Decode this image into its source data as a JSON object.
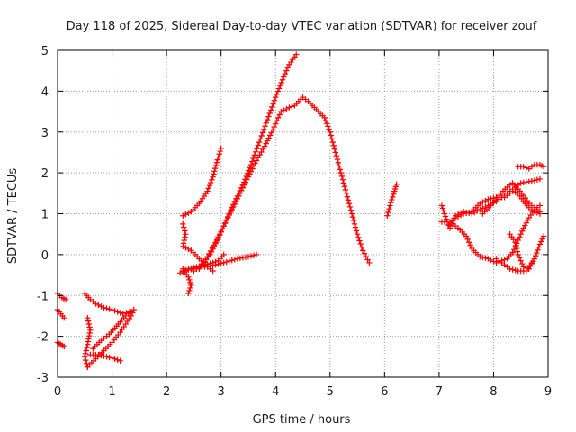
{
  "chart_data": {
    "type": "scatter",
    "title": "Day 118 of 2025, Sidereal Day-to-day VTEC variation (SDTVAR) for receiver zouf",
    "xlabel": "GPS time / hours",
    "ylabel": "SDTVAR / TECUs",
    "xlim": [
      0,
      9
    ],
    "ylim": [
      -3,
      5
    ],
    "xticks": [
      0,
      1,
      2,
      3,
      4,
      5,
      6,
      7,
      8,
      9
    ],
    "yticks": [
      -3,
      -2,
      -1,
      0,
      1,
      2,
      3,
      4,
      5
    ],
    "grid": true,
    "marker": "+",
    "marker_color": "#ff0000",
    "tracks": [
      {
        "points": [
          [
            0.0,
            -0.95
          ],
          [
            0.08,
            -1.05
          ],
          [
            0.15,
            -1.1
          ]
        ]
      },
      {
        "points": [
          [
            0.0,
            -1.35
          ],
          [
            0.06,
            -1.45
          ],
          [
            0.12,
            -1.55
          ]
        ]
      },
      {
        "points": [
          [
            0.0,
            -2.15
          ],
          [
            0.06,
            -2.2
          ],
          [
            0.12,
            -2.25
          ]
        ]
      },
      {
        "points": [
          [
            0.5,
            -0.95
          ],
          [
            0.6,
            -1.1
          ],
          [
            0.7,
            -1.2
          ],
          [
            0.85,
            -1.3
          ],
          [
            1.0,
            -1.35
          ],
          [
            1.1,
            -1.4
          ],
          [
            1.2,
            -1.45
          ],
          [
            1.32,
            -1.4
          ]
        ]
      },
      {
        "points": [
          [
            0.55,
            -1.55
          ],
          [
            0.6,
            -1.85
          ],
          [
            0.55,
            -2.2
          ],
          [
            0.5,
            -2.5
          ],
          [
            0.55,
            -2.75
          ]
        ]
      },
      {
        "points": [
          [
            0.55,
            -2.75
          ],
          [
            0.7,
            -2.55
          ],
          [
            0.85,
            -2.35
          ],
          [
            1.0,
            -2.15
          ],
          [
            1.15,
            -1.9
          ],
          [
            1.25,
            -1.7
          ],
          [
            1.35,
            -1.5
          ],
          [
            1.4,
            -1.35
          ]
        ]
      },
      {
        "points": [
          [
            0.6,
            -2.45
          ],
          [
            0.75,
            -2.45
          ],
          [
            0.9,
            -2.5
          ],
          [
            1.05,
            -2.55
          ],
          [
            1.15,
            -2.6
          ]
        ]
      },
      {
        "points": [
          [
            0.65,
            -2.3
          ],
          [
            0.8,
            -2.1
          ],
          [
            0.95,
            -1.95
          ],
          [
            1.05,
            -1.8
          ],
          [
            1.15,
            -1.65
          ],
          [
            1.25,
            -1.5
          ],
          [
            1.35,
            -1.4
          ]
        ]
      },
      {
        "points": [
          [
            2.3,
            0.95
          ],
          [
            2.45,
            1.05
          ],
          [
            2.6,
            1.25
          ],
          [
            2.75,
            1.55
          ],
          [
            2.85,
            1.9
          ],
          [
            2.92,
            2.25
          ],
          [
            3.0,
            2.6
          ]
        ]
      },
      {
        "points": [
          [
            2.3,
            0.75
          ],
          [
            2.35,
            0.5
          ],
          [
            2.3,
            0.2
          ],
          [
            2.45,
            0.1
          ],
          [
            2.6,
            -0.1
          ],
          [
            2.75,
            -0.3
          ],
          [
            2.85,
            -0.4
          ]
        ]
      },
      {
        "points": [
          [
            2.3,
            -0.35
          ],
          [
            2.4,
            -0.55
          ],
          [
            2.45,
            -0.75
          ],
          [
            2.4,
            -0.95
          ]
        ]
      },
      {
        "points": [
          [
            2.3,
            -0.4
          ],
          [
            2.5,
            -0.35
          ],
          [
            2.7,
            -0.3
          ],
          [
            2.9,
            -0.25
          ],
          [
            3.1,
            -0.18
          ],
          [
            3.3,
            -0.1
          ],
          [
            3.5,
            -0.05
          ],
          [
            3.65,
            0.0
          ]
        ]
      },
      {
        "points": [
          [
            2.25,
            -0.45
          ],
          [
            2.4,
            -0.35
          ],
          [
            2.55,
            -0.3
          ],
          [
            2.7,
            -0.25
          ],
          [
            2.85,
            -0.2
          ],
          [
            2.95,
            -0.15
          ],
          [
            3.05,
            0.0
          ]
        ]
      },
      {
        "points": [
          [
            2.5,
            -0.4
          ],
          [
            2.65,
            -0.25
          ],
          [
            2.8,
            0.0
          ],
          [
            2.95,
            0.4
          ],
          [
            3.1,
            0.85
          ],
          [
            3.25,
            1.3
          ],
          [
            3.4,
            1.7
          ],
          [
            3.55,
            2.2
          ],
          [
            3.7,
            2.75
          ],
          [
            3.85,
            3.3
          ],
          [
            4.0,
            3.85
          ],
          [
            4.15,
            4.35
          ],
          [
            4.25,
            4.65
          ],
          [
            4.38,
            4.9
          ]
        ]
      },
      {
        "points": [
          [
            2.6,
            -0.35
          ],
          [
            2.75,
            -0.05
          ],
          [
            2.9,
            0.3
          ],
          [
            3.05,
            0.7
          ],
          [
            3.2,
            1.1
          ],
          [
            3.35,
            1.5
          ],
          [
            3.5,
            1.9
          ],
          [
            3.65,
            2.3
          ],
          [
            3.8,
            2.65
          ],
          [
            3.95,
            3.05
          ],
          [
            4.1,
            3.5
          ],
          [
            4.25,
            3.6
          ],
          [
            4.35,
            3.65
          ],
          [
            4.5,
            3.85
          ],
          [
            4.6,
            3.75
          ],
          [
            4.75,
            3.55
          ],
          [
            4.9,
            3.35
          ],
          [
            5.0,
            3.0
          ],
          [
            5.1,
            2.5
          ],
          [
            5.2,
            2.0
          ],
          [
            5.3,
            1.5
          ],
          [
            5.4,
            1.0
          ],
          [
            5.5,
            0.5
          ],
          [
            5.6,
            0.1
          ],
          [
            5.72,
            -0.2
          ]
        ]
      },
      {
        "points": [
          [
            6.05,
            0.95
          ],
          [
            6.1,
            1.2
          ],
          [
            6.18,
            1.55
          ],
          [
            6.22,
            1.72
          ]
        ]
      },
      {
        "points": [
          [
            7.05,
            1.2
          ],
          [
            7.1,
            1.0
          ],
          [
            7.15,
            0.8
          ],
          [
            7.2,
            0.65
          ]
        ]
      },
      {
        "points": [
          [
            7.05,
            0.8
          ],
          [
            7.2,
            0.8
          ],
          [
            7.35,
            0.65
          ],
          [
            7.5,
            0.45
          ],
          [
            7.6,
            0.15
          ],
          [
            7.75,
            -0.05
          ],
          [
            7.9,
            -0.1
          ],
          [
            8.05,
            -0.2
          ],
          [
            8.15,
            -0.15
          ],
          [
            8.25,
            -0.1
          ],
          [
            8.35,
            0.05
          ],
          [
            8.45,
            0.35
          ],
          [
            8.55,
            0.65
          ],
          [
            8.65,
            0.9
          ],
          [
            8.75,
            1.1
          ],
          [
            8.85,
            1.2
          ]
        ]
      },
      {
        "points": [
          [
            7.2,
            0.7
          ],
          [
            7.3,
            0.95
          ],
          [
            7.45,
            1.05
          ],
          [
            7.6,
            1.0
          ],
          [
            7.75,
            1.1
          ],
          [
            7.9,
            1.2
          ],
          [
            8.05,
            1.3
          ],
          [
            8.2,
            1.45
          ],
          [
            8.35,
            1.6
          ],
          [
            8.5,
            1.75
          ],
          [
            8.7,
            1.8
          ],
          [
            8.85,
            1.85
          ]
        ]
      },
      {
        "points": [
          [
            7.3,
            0.9
          ],
          [
            7.45,
            1.0
          ],
          [
            7.6,
            1.05
          ],
          [
            7.75,
            1.25
          ],
          [
            7.9,
            1.35
          ],
          [
            8.05,
            1.4
          ],
          [
            8.2,
            1.4
          ],
          [
            8.35,
            1.55
          ],
          [
            8.45,
            1.5
          ],
          [
            8.55,
            1.3
          ],
          [
            8.65,
            1.15
          ],
          [
            8.75,
            1.05
          ],
          [
            8.85,
            1.0
          ]
        ]
      },
      {
        "points": [
          [
            7.8,
            1.0
          ],
          [
            7.95,
            1.2
          ],
          [
            8.1,
            1.45
          ],
          [
            8.25,
            1.65
          ],
          [
            8.35,
            1.75
          ],
          [
            8.45,
            1.6
          ],
          [
            8.55,
            1.45
          ],
          [
            8.65,
            1.25
          ],
          [
            8.75,
            1.15
          ],
          [
            8.85,
            1.05
          ]
        ]
      },
      {
        "points": [
          [
            8.3,
            0.5
          ],
          [
            8.4,
            0.3
          ],
          [
            8.45,
            0.0
          ],
          [
            8.55,
            -0.3
          ],
          [
            8.65,
            -0.35
          ],
          [
            8.75,
            -0.1
          ],
          [
            8.85,
            0.25
          ],
          [
            8.92,
            0.45
          ]
        ]
      },
      {
        "points": [
          [
            8.05,
            -0.1
          ],
          [
            8.2,
            -0.25
          ],
          [
            8.3,
            -0.35
          ],
          [
            8.45,
            -0.4
          ],
          [
            8.6,
            -0.4
          ],
          [
            8.7,
            -0.2
          ]
        ]
      },
      {
        "points": [
          [
            8.45,
            2.15
          ],
          [
            8.55,
            2.15
          ],
          [
            8.65,
            2.1
          ],
          [
            8.75,
            2.2
          ],
          [
            8.85,
            2.2
          ],
          [
            8.92,
            2.15
          ]
        ]
      }
    ]
  }
}
